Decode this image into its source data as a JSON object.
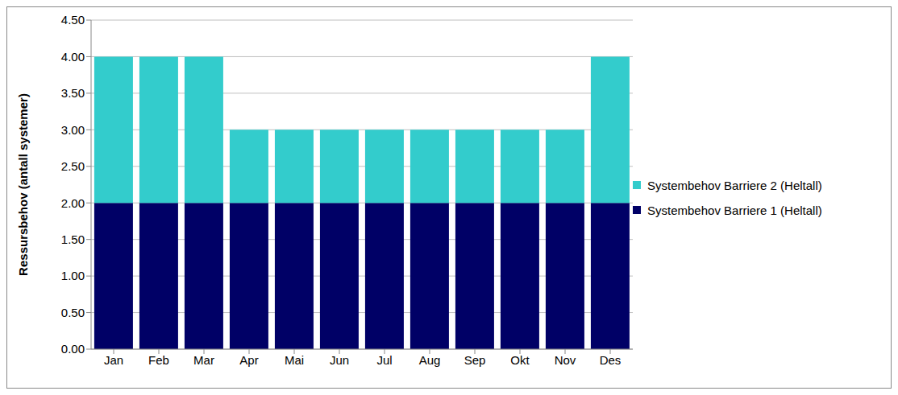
{
  "chart_data": {
    "type": "bar",
    "stacked": true,
    "grid": true,
    "legend": "right",
    "y_label": "Ressursbehov (antall systemer)",
    "categories": [
      "Jan",
      "Feb",
      "Mar",
      "Apr",
      "Mai",
      "Jun",
      "Jul",
      "Aug",
      "Sep",
      "Okt",
      "Nov",
      "Des"
    ],
    "series": [
      {
        "name": "Systembehov Barriere 1 (Heltall)",
        "color": "#000066",
        "values": [
          2,
          2,
          2,
          2,
          2,
          2,
          2,
          2,
          2,
          2,
          2,
          2
        ]
      },
      {
        "name": "Systembehov Barriere 2 (Heltall)",
        "color": "#33cccc",
        "values": [
          2,
          2,
          2,
          1,
          1,
          1,
          1,
          1,
          1,
          1,
          1,
          2
        ]
      }
    ],
    "ylim": [
      0,
      4.5
    ],
    "yticks": [
      {
        "value": 0,
        "label": "0.00"
      },
      {
        "value": 0.5,
        "label": "0.50"
      },
      {
        "value": 1,
        "label": "1.00"
      },
      {
        "value": 1.5,
        "label": "1.50"
      },
      {
        "value": 2,
        "label": "2.00"
      },
      {
        "value": 2.5,
        "label": "2.50"
      },
      {
        "value": 3,
        "label": "3.00"
      },
      {
        "value": 3.5,
        "label": "3.50"
      },
      {
        "value": 4,
        "label": "4.00"
      },
      {
        "value": 4.5,
        "label": "4.50"
      }
    ]
  }
}
